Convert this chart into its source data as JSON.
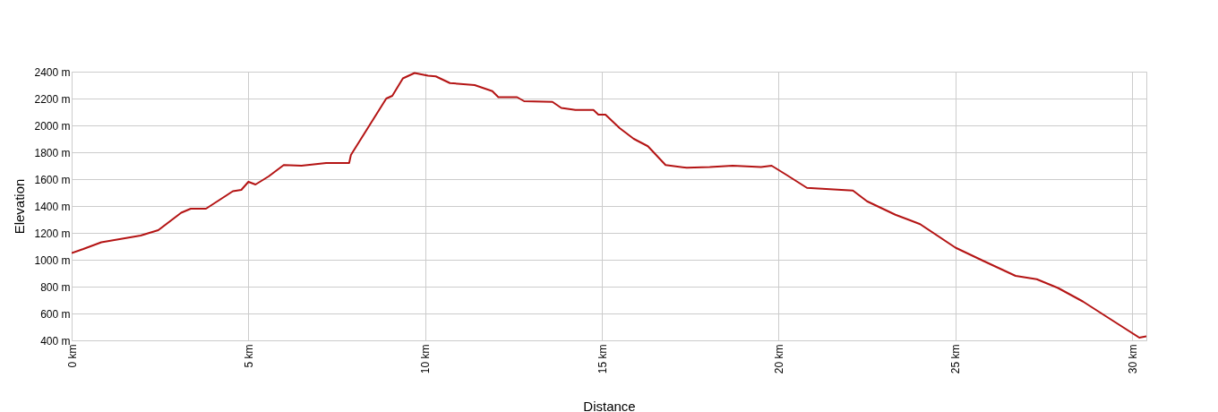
{
  "chart_data": {
    "type": "line",
    "xlabel": "Distance",
    "ylabel": "Elevation",
    "xlim": [
      0,
      30.4
    ],
    "ylim": [
      400,
      2400
    ],
    "xticks": [
      {
        "value": 0,
        "label": "0 km"
      },
      {
        "value": 5,
        "label": "5 km"
      },
      {
        "value": 10,
        "label": "10 km"
      },
      {
        "value": 15,
        "label": "15 km"
      },
      {
        "value": 20,
        "label": "20 km"
      },
      {
        "value": 25,
        "label": "25 km"
      },
      {
        "value": 30,
        "label": "30 km"
      }
    ],
    "yticks": [
      {
        "value": 400,
        "label": "400 m"
      },
      {
        "value": 600,
        "label": "600 m"
      },
      {
        "value": 800,
        "label": "800 m"
      },
      {
        "value": 1000,
        "label": "1000 m"
      },
      {
        "value": 1200,
        "label": "1200 m"
      },
      {
        "value": 1400,
        "label": "1400 m"
      },
      {
        "value": 1600,
        "label": "1600 m"
      },
      {
        "value": 1800,
        "label": "1800 m"
      },
      {
        "value": 2000,
        "label": "2000 m"
      },
      {
        "value": 2200,
        "label": "2200 m"
      },
      {
        "value": 2400,
        "label": "2400 m"
      }
    ],
    "grid": true,
    "marker": "none",
    "line_style": "solid",
    "series": [
      {
        "color": "#b41414",
        "x": [
          0,
          0.33,
          0.84,
          1.95,
          2.45,
          3.1,
          3.37,
          3.8,
          4.56,
          4.8,
          5.0,
          5.2,
          5.57,
          6.0,
          6.5,
          7.2,
          7.85,
          7.9,
          8.4,
          8.9,
          9.07,
          9.37,
          9.7,
          10.08,
          10.3,
          10.7,
          11.4,
          11.9,
          12.07,
          12.6,
          12.8,
          13.6,
          13.85,
          14.25,
          14.76,
          14.9,
          15.1,
          15.5,
          15.9,
          16.3,
          16.8,
          17.4,
          18.05,
          18.7,
          19.5,
          19.8,
          20.2,
          20.8,
          22.1,
          22.5,
          23.3,
          24.0,
          25.0,
          25.8,
          26.7,
          27.3,
          27.9,
          28.6,
          29.4,
          30.2,
          30.4
        ],
        "values": [
          1050,
          1080,
          1130,
          1180,
          1220,
          1350,
          1380,
          1380,
          1510,
          1520,
          1580,
          1560,
          1620,
          1705,
          1700,
          1720,
          1720,
          1780,
          1990,
          2200,
          2220,
          2350,
          2390,
          2370,
          2365,
          2315,
          2300,
          2255,
          2210,
          2210,
          2180,
          2175,
          2130,
          2115,
          2115,
          2080,
          2080,
          1980,
          1900,
          1845,
          1705,
          1685,
          1690,
          1700,
          1690,
          1700,
          1635,
          1535,
          1515,
          1435,
          1335,
          1265,
          1090,
          990,
          880,
          855,
          790,
          690,
          555,
          420,
          430
        ]
      }
    ]
  }
}
